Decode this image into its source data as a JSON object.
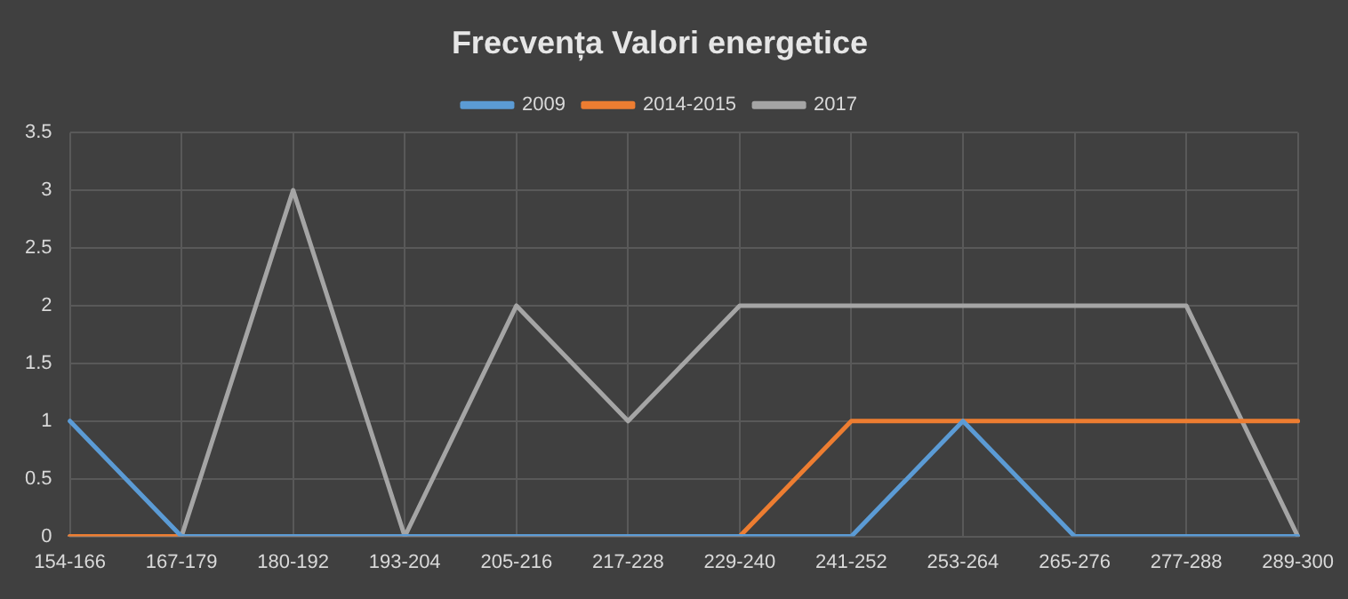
{
  "chart_data": {
    "type": "line",
    "title": "Frecvența Valori energetice",
    "categories": [
      "154-166",
      "167-179",
      "180-192",
      "193-204",
      "205-216",
      "217-228",
      "229-240",
      "241-252",
      "253-264",
      "265-276",
      "277-288",
      "289-300"
    ],
    "series": [
      {
        "name": "2009",
        "color": "#5b9bd5",
        "values": [
          1,
          0,
          0,
          0,
          0,
          0,
          0,
          0,
          1,
          0,
          0,
          0
        ]
      },
      {
        "name": "2014-2015",
        "color": "#ed7d31",
        "values": [
          0,
          0,
          0,
          0,
          0,
          0,
          0,
          1,
          1,
          1,
          1,
          1
        ]
      },
      {
        "name": "2017",
        "color": "#a5a5a5",
        "values": [
          0,
          0,
          3,
          0,
          2,
          1,
          2,
          2,
          2,
          2,
          2,
          0
        ]
      }
    ],
    "ylim": [
      0,
      3.5
    ],
    "yticks": [
      0,
      0.5,
      1,
      1.5,
      2,
      2.5,
      3,
      3.5
    ],
    "grid": true,
    "legend": "top",
    "marker": "none",
    "line_style": "solid"
  }
}
